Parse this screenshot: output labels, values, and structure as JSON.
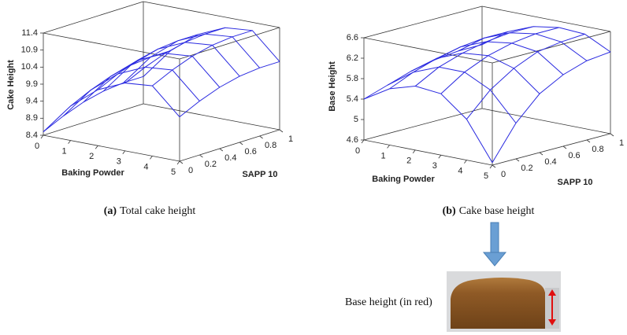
{
  "chart_data": [
    {
      "type": "surface",
      "x_label": "Baking Powder",
      "y_label": "SAPP 10",
      "z_label": "Cake Height",
      "x": [
        0,
        1,
        2,
        3,
        4,
        5
      ],
      "y": [
        0,
        0.2,
        0.4,
        0.6,
        0.8,
        1
      ],
      "z": [
        [
          8.5,
          8.78,
          9.0,
          9.14,
          9.2,
          9.2
        ],
        [
          9.41,
          9.69,
          9.91,
          10.05,
          10.11,
          10.11
        ],
        [
          10.04,
          10.32,
          10.54,
          10.68,
          10.74,
          10.74
        ],
        [
          10.39,
          10.67,
          10.89,
          11.03,
          11.09,
          11.09
        ],
        [
          10.46,
          10.74,
          10.96,
          11.1,
          11.16,
          11.16
        ],
        [
          9.7,
          9.98,
          10.2,
          10.34,
          10.4,
          10.4
        ]
      ],
      "xlim": [
        0,
        5
      ],
      "ylim": [
        0,
        1
      ],
      "zlim": [
        8.4,
        11.4
      ],
      "xticks": [
        0,
        1,
        2,
        3,
        4,
        5
      ],
      "yticks": [
        0,
        0.2,
        0.4,
        0.6,
        0.8,
        1
      ],
      "zticks": [
        8.4,
        8.9,
        9.4,
        9.9,
        10.4,
        10.9,
        11.4
      ],
      "color": "#2a2ae0",
      "caption_label": "(a)",
      "caption": "Total cake height"
    },
    {
      "type": "surface",
      "x_label": "Baking Powder",
      "y_label": "SAPP 10",
      "z_label": "Base Height",
      "x": [
        0,
        1,
        2,
        3,
        4,
        5
      ],
      "y": [
        0,
        0.2,
        0.4,
        0.6,
        0.8,
        1
      ],
      "z": [
        [
          5.4,
          5.55,
          5.7,
          5.8,
          5.85,
          5.85
        ],
        [
          5.7,
          5.9,
          6.05,
          6.15,
          6.2,
          6.2
        ],
        [
          5.85,
          6.1,
          6.25,
          6.35,
          6.4,
          6.4
        ],
        [
          5.8,
          6.1,
          6.3,
          6.42,
          6.48,
          6.48
        ],
        [
          5.4,
          5.85,
          6.15,
          6.35,
          6.42,
          6.45
        ],
        [
          4.65,
          5.3,
          5.75,
          6.0,
          6.15,
          6.2
        ]
      ],
      "xlim": [
        0,
        5
      ],
      "ylim": [
        0,
        1
      ],
      "zlim": [
        4.6,
        6.6
      ],
      "xticks": [
        0,
        1,
        2,
        3,
        4,
        5
      ],
      "yticks": [
        0,
        0.2,
        0.4,
        0.6,
        0.8,
        1
      ],
      "zticks": [
        4.6,
        5,
        5.4,
        5.8,
        6.2,
        6.6
      ],
      "color": "#2a2ae0",
      "caption_label": "(b)",
      "caption": "Cake base height"
    }
  ],
  "photo_label": "Base height (in red)"
}
